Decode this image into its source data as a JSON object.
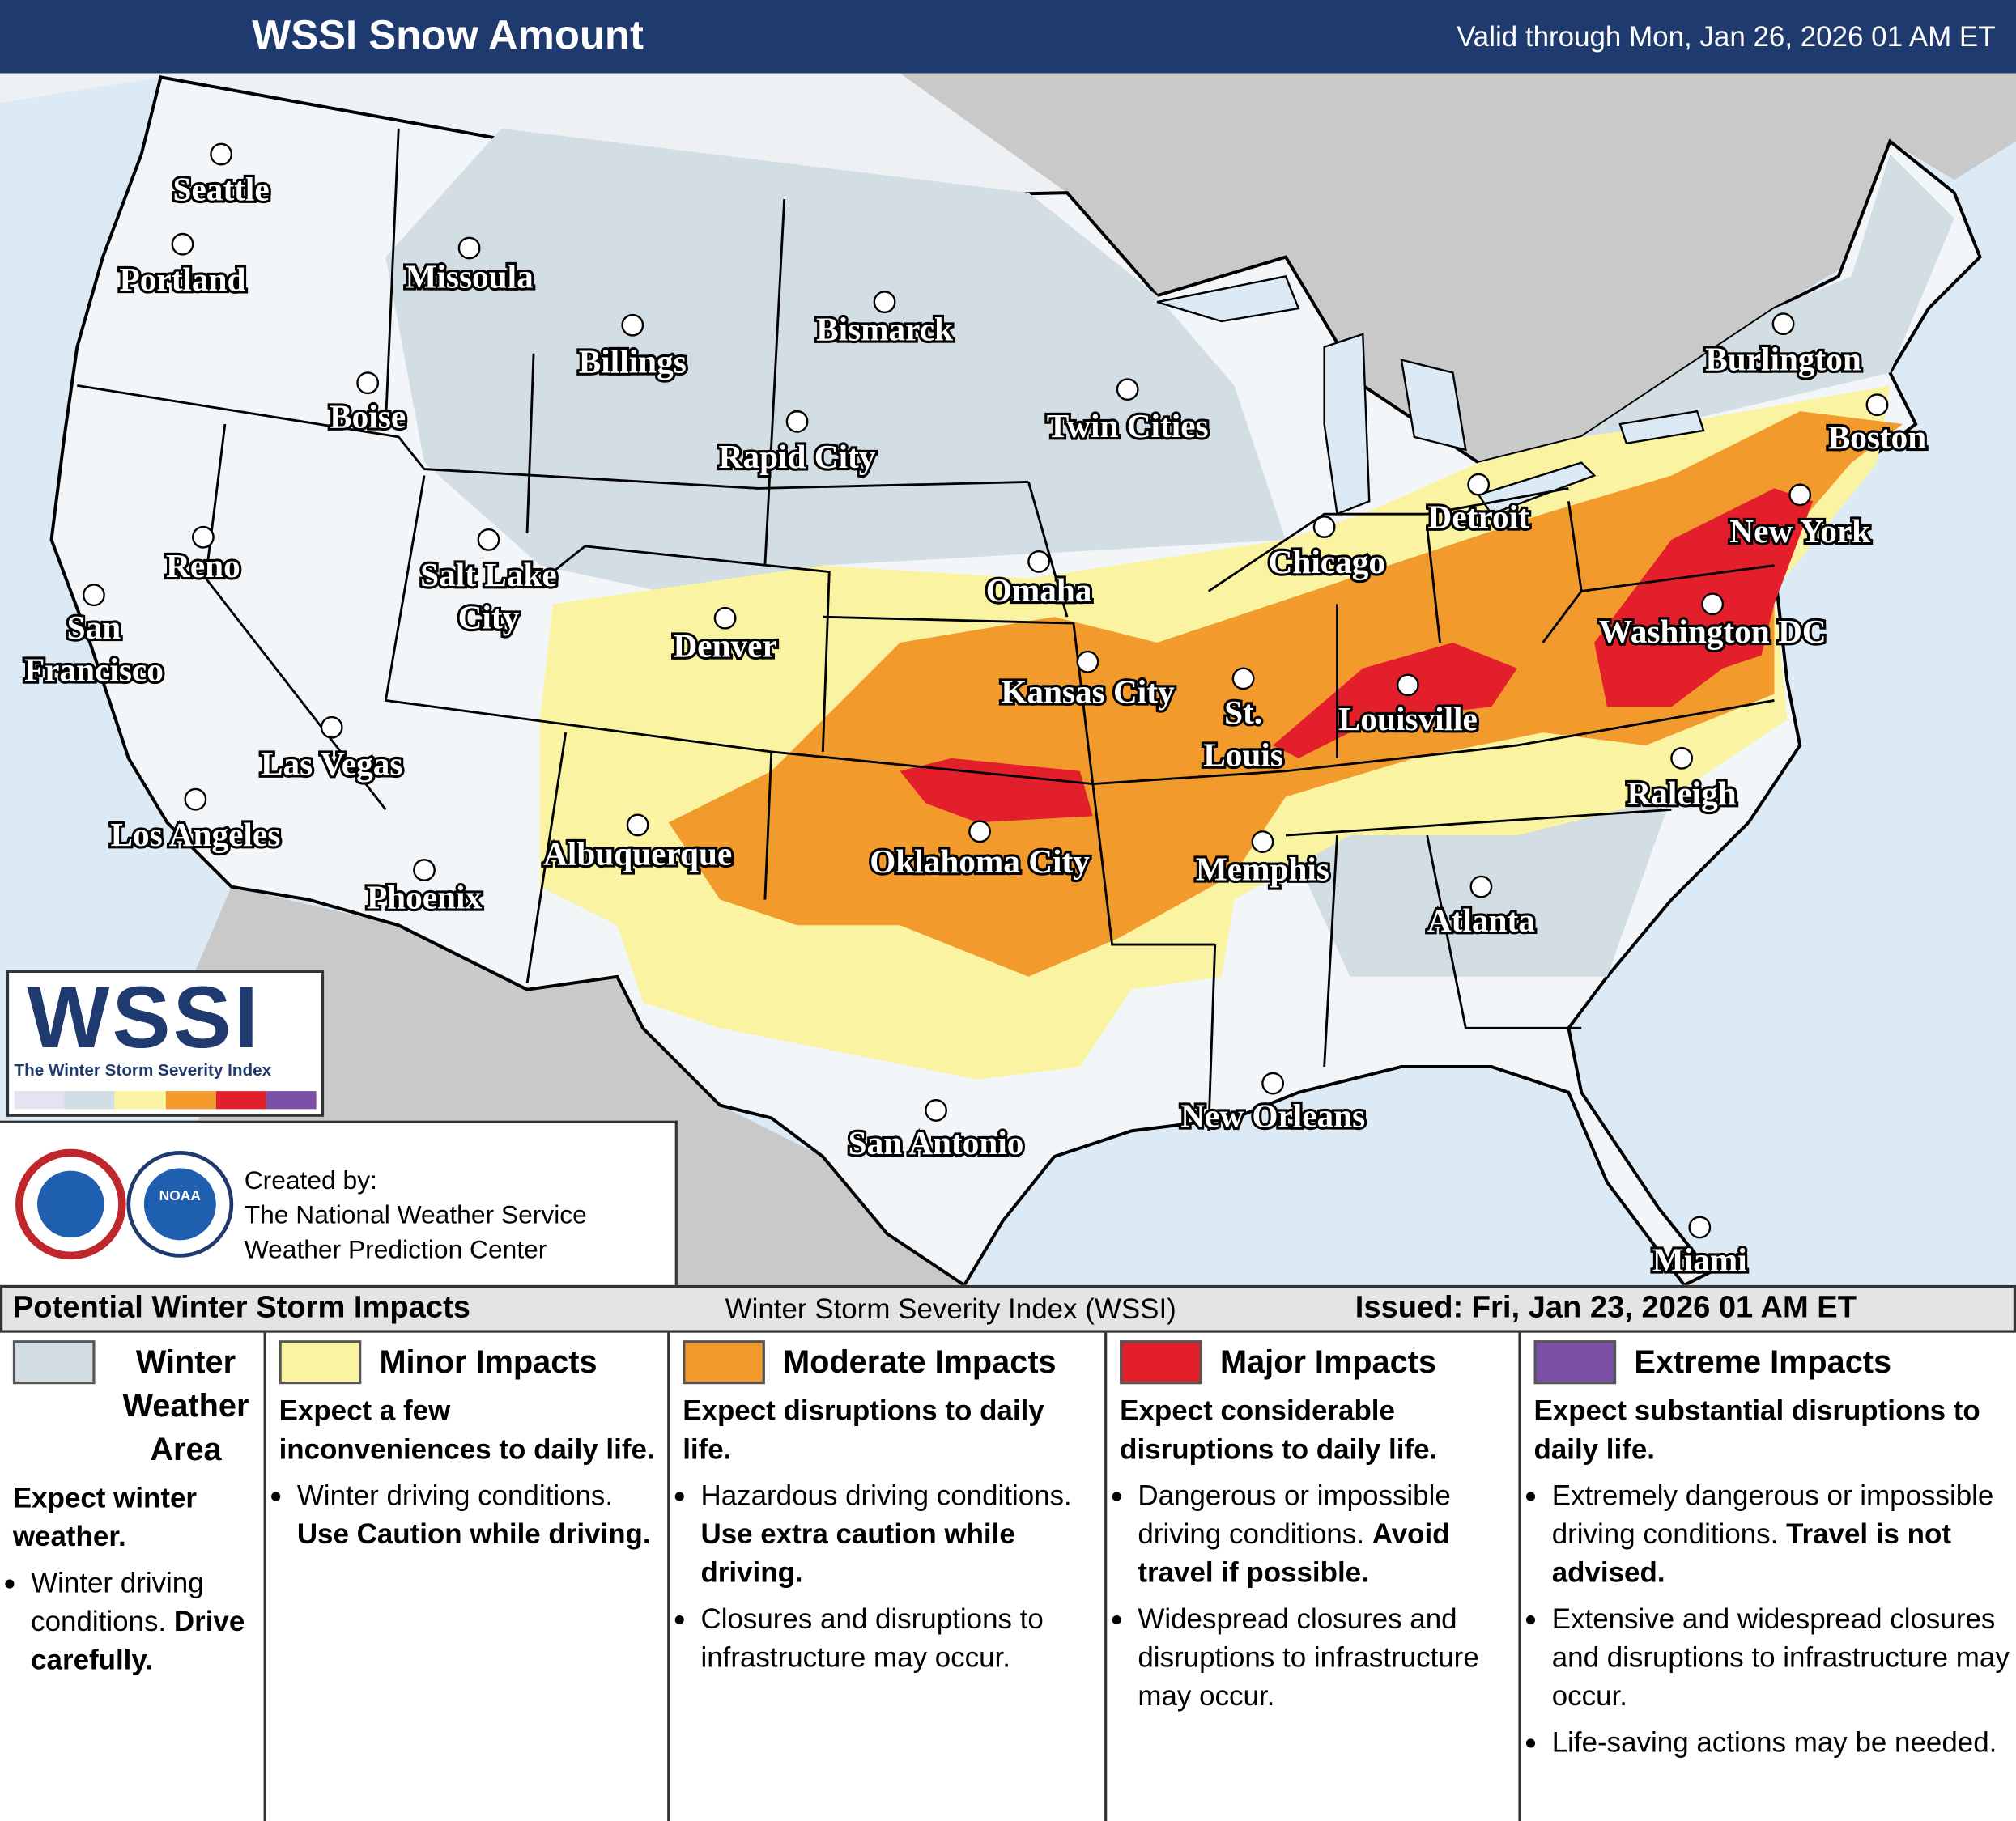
{
  "header": {
    "title": "WSSI Snow Amount",
    "valid": "Valid through Mon, Jan 26, 2026 01 AM ET"
  },
  "cities": [
    [
      "Seattle"
    ],
    [
      "Portland"
    ],
    [
      "Missoula"
    ],
    [
      "Billings"
    ],
    [
      "Bismarck"
    ],
    [
      "Boise"
    ],
    [
      "Rapid City"
    ],
    [
      "Twin Cities"
    ],
    [
      "Burlington"
    ],
    [
      "Boston"
    ],
    [
      "Reno"
    ],
    [
      "Detroit"
    ],
    [
      "Chicago"
    ],
    [
      "New York"
    ],
    [
      "Salt Lake",
      "City"
    ],
    [
      "Omaha"
    ],
    [
      "San",
      "Francisco"
    ],
    [
      "Denver"
    ],
    [
      "Kansas City"
    ],
    [
      "St.",
      "Louis"
    ],
    [
      "Louisville"
    ],
    [
      "Washington DC"
    ],
    [
      "Las Vegas"
    ],
    [
      "Raleigh"
    ],
    [
      "Los Angeles"
    ],
    [
      "Albuquerque"
    ],
    [
      "Oklahoma City"
    ],
    [
      "Memphis"
    ],
    [
      "Phoenix"
    ],
    [
      "Atlanta"
    ],
    [
      "New Orleans"
    ],
    [
      "San Antonio"
    ],
    [
      "Miami"
    ]
  ],
  "logo": {
    "name": "WSSI",
    "tagline": "The Winter Storm Severity Index",
    "noaa": "NOAA"
  },
  "credits": {
    "label": "Created by:",
    "lines": [
      "The National Weather Service",
      "Weather Prediction Center"
    ]
  },
  "legend": {
    "title": "Potential Winter Storm Impacts",
    "subtitle": "Winter Storm Severity Index (WSSI)",
    "issued": "Issued: Fri, Jan 23, 2026 01 AM ET",
    "columns": [
      {
        "title": "Winter Weather Area",
        "color": "#d3dde4",
        "summary": "Expect winter weather.",
        "bullets": [
          {
            "text": "Winter driving conditions.",
            "bold": "Drive carefully."
          }
        ]
      },
      {
        "title": "Minor Impacts",
        "color": "#faf4a2",
        "summary": "Expect a few inconveniences to daily life.",
        "bullets": [
          {
            "text": "Winter driving conditions.",
            "bold": "Use Caution while driving."
          }
        ]
      },
      {
        "title": "Moderate Impacts",
        "color": "#f39a2d",
        "summary": "Expect disruptions to daily life.",
        "bullets": [
          {
            "text": "Hazardous driving conditions.",
            "bold": "Use extra caution while driving."
          },
          {
            "text": "Closures and disruptions to infrastructure may occur."
          }
        ]
      },
      {
        "title": "Major Impacts",
        "color": "#e31f2b",
        "summary": "Expect considerable disruptions to daily life.",
        "bullets": [
          {
            "text": "Dangerous or impossible driving conditions.",
            "bold": "Avoid travel if possible."
          },
          {
            "text": "Widespread closures and disruptions to infrastructure may occur."
          }
        ]
      },
      {
        "title": "Extreme Impacts",
        "color": "#7a4fa5",
        "summary": "Expect substantial disruptions to daily life.",
        "bullets": [
          {
            "text": "Extremely dangerous or impossible driving conditions.",
            "bold": "Travel is not advised."
          },
          {
            "text": "Extensive and widespread closures and disruptions to infrastructure may occur."
          },
          {
            "text": "Life-saving actions may be needed."
          }
        ]
      }
    ]
  }
}
